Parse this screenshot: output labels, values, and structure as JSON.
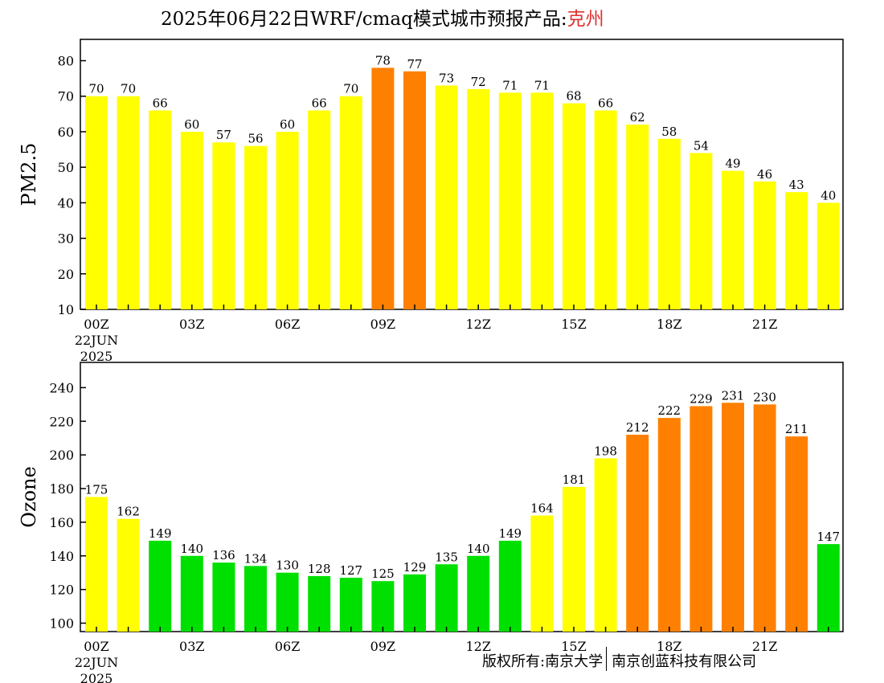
{
  "title": {
    "main": "2025年06月22日WRF/cmaq模式城市预报产品:",
    "city": "克州"
  },
  "footer": {
    "copyright": "版权所有:南京大学",
    "company": "南京创蓝科技有限公司"
  },
  "colors": {
    "yellow": "#ffff00",
    "orange": "#ff8000",
    "green": "#00e000",
    "title_city": "#e03030"
  },
  "chart_data": [
    {
      "type": "bar",
      "ylabel": "PM2.5",
      "ylim": [
        10,
        86
      ],
      "yticks": [
        "10",
        "20",
        "30",
        "40",
        "50",
        "60",
        "70",
        "80"
      ],
      "xticks": [
        {
          "index": 0,
          "label": "00Z",
          "sub": [
            "22JUN",
            "2025"
          ]
        },
        {
          "index": 3,
          "label": "03Z"
        },
        {
          "index": 6,
          "label": "06Z"
        },
        {
          "index": 9,
          "label": "09Z"
        },
        {
          "index": 12,
          "label": "12Z"
        },
        {
          "index": 15,
          "label": "15Z"
        },
        {
          "index": 18,
          "label": "18Z"
        },
        {
          "index": 21,
          "label": "21Z"
        }
      ],
      "values": [
        70,
        70,
        66,
        60,
        57,
        56,
        60,
        66,
        70,
        78,
        77,
        73,
        72,
        71,
        71,
        68,
        66,
        62,
        58,
        54,
        49,
        46,
        43,
        40
      ],
      "colors": [
        "yellow",
        "yellow",
        "yellow",
        "yellow",
        "yellow",
        "yellow",
        "yellow",
        "yellow",
        "yellow",
        "orange",
        "orange",
        "yellow",
        "yellow",
        "yellow",
        "yellow",
        "yellow",
        "yellow",
        "yellow",
        "yellow",
        "yellow",
        "yellow",
        "yellow",
        "yellow",
        "yellow"
      ]
    },
    {
      "type": "bar",
      "ylabel": "Ozone",
      "ylim": [
        95,
        255
      ],
      "yticks": [
        "100",
        "120",
        "140",
        "160",
        "180",
        "200",
        "220",
        "240"
      ],
      "xticks": [
        {
          "index": 0,
          "label": "00Z",
          "sub": [
            "22JUN",
            "2025"
          ]
        },
        {
          "index": 3,
          "label": "03Z"
        },
        {
          "index": 6,
          "label": "06Z"
        },
        {
          "index": 9,
          "label": "09Z"
        },
        {
          "index": 12,
          "label": "12Z"
        },
        {
          "index": 15,
          "label": "15Z"
        },
        {
          "index": 18,
          "label": "18Z"
        },
        {
          "index": 21,
          "label": "21Z"
        }
      ],
      "values": [
        175,
        162,
        149,
        140,
        136,
        134,
        130,
        128,
        127,
        125,
        129,
        135,
        140,
        149,
        164,
        181,
        198,
        212,
        222,
        229,
        231,
        230,
        211,
        147
      ],
      "colors": [
        "yellow",
        "yellow",
        "green",
        "green",
        "green",
        "green",
        "green",
        "green",
        "green",
        "green",
        "green",
        "green",
        "green",
        "green",
        "yellow",
        "yellow",
        "yellow",
        "orange",
        "orange",
        "orange",
        "orange",
        "orange",
        "orange",
        "green"
      ]
    }
  ]
}
